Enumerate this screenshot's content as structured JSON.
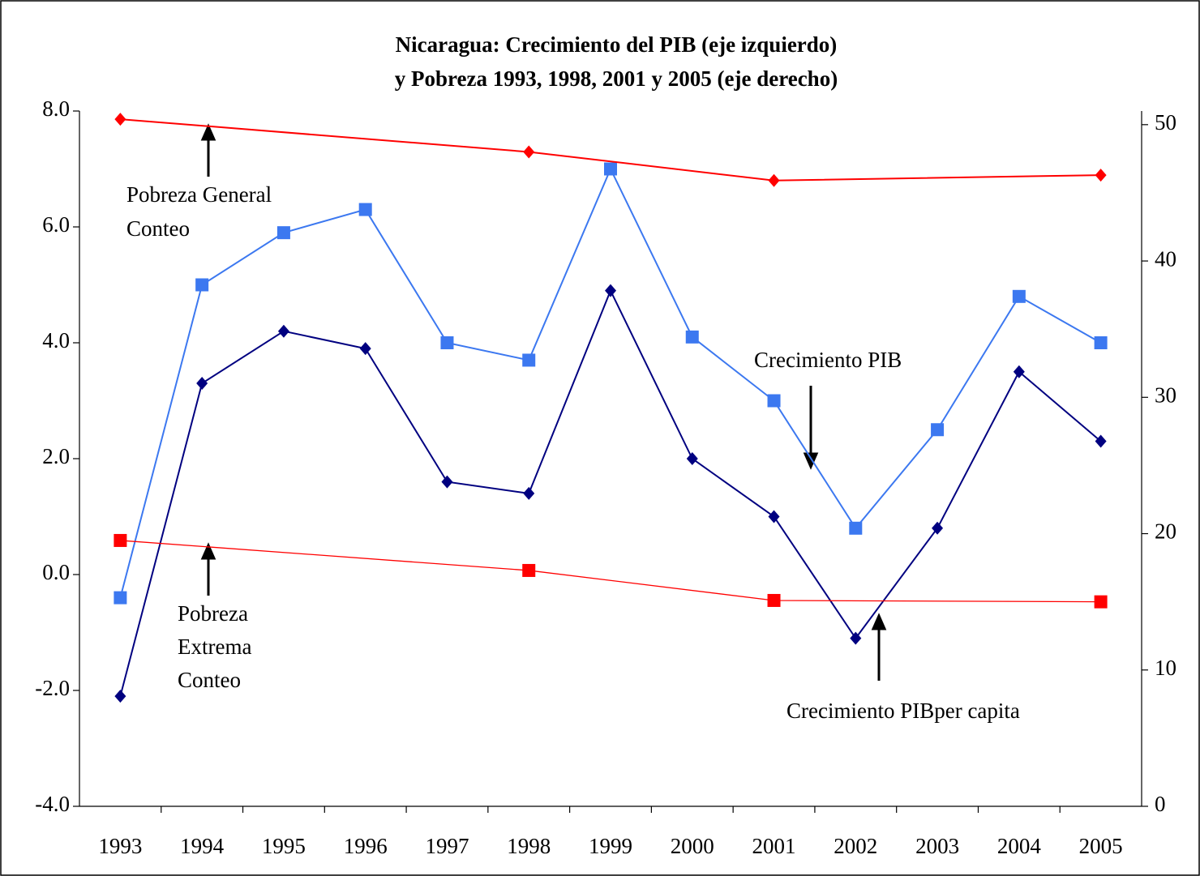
{
  "chart_data": {
    "type": "line",
    "title": "Nicaragua: Crecimiento del PIB (eje izquierdo)",
    "subtitle": "y Pobreza 1993, 1998, 2001 y 2005 (eje derecho)",
    "categories": [
      "1993",
      "1994",
      "1995",
      "1996",
      "1997",
      "1998",
      "1999",
      "2000",
      "2001",
      "2002",
      "2003",
      "2004",
      "2005"
    ],
    "series": [
      {
        "name": "Crecimiento PIB",
        "color": "#3c78f0",
        "marker": "square",
        "axis": "y",
        "values": [
          -0.4,
          5.0,
          5.9,
          6.3,
          4.0,
          3.7,
          7.0,
          4.1,
          3.0,
          0.8,
          2.5,
          4.8,
          4.0
        ]
      },
      {
        "name": "Crecimiento PIBper capita",
        "color": "#000080",
        "marker": "diamond",
        "axis": "y",
        "values": [
          -2.1,
          3.3,
          4.2,
          3.9,
          1.6,
          1.4,
          4.9,
          2.0,
          1.0,
          -1.1,
          0.8,
          3.5,
          2.3
        ]
      },
      {
        "name": "Pobreza General Conteo",
        "color": "#ff0000",
        "marker": "diamond",
        "axis": "y2",
        "x": [
          "1993",
          "1998",
          "2001",
          "2005"
        ],
        "values": [
          50.4,
          48.0,
          45.9,
          46.3
        ]
      },
      {
        "name": "Pobreza Extrema Conteo",
        "color": "#ff0000",
        "marker": "square",
        "axis": "y2",
        "x": [
          "1993",
          "1998",
          "2001",
          "2005"
        ],
        "values": [
          19.5,
          17.3,
          15.1,
          15.0
        ]
      }
    ],
    "annotations": [
      "Pobreza General",
      "Conteo",
      "Pobreza",
      "Extrema",
      "Conteo",
      "Crecimiento PIB",
      "Crecimiento PIBper capita"
    ],
    "ylim": [
      -4,
      8
    ],
    "yticks": [
      {
        "value": -4,
        "label": "-4.0"
      },
      {
        "value": -2,
        "label": "-2.0"
      },
      {
        "value": 0,
        "label": "0.0"
      },
      {
        "value": 2,
        "label": "2.0"
      },
      {
        "value": 4,
        "label": "4.0"
      },
      {
        "value": 6,
        "label": "6.0"
      },
      {
        "value": 8,
        "label": "8.0"
      }
    ],
    "y2lim": [
      0,
      51
    ],
    "y2ticks": [
      0,
      10,
      20,
      30,
      40,
      50
    ],
    "grid": false
  }
}
